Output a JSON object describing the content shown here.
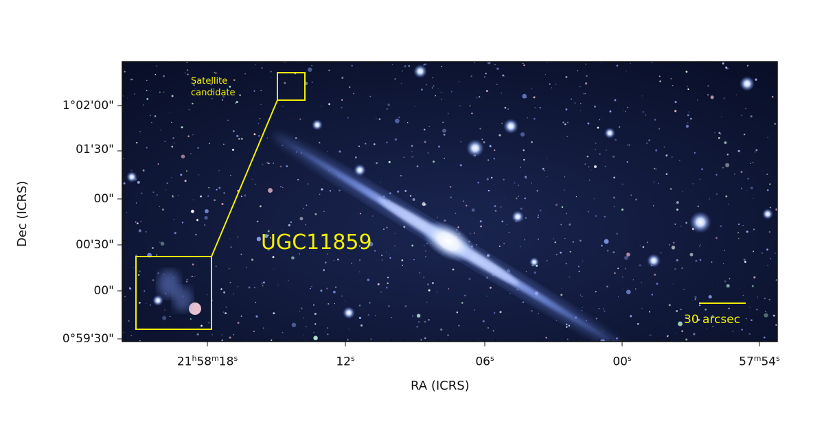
{
  "annotations": {
    "galaxy_name": "UGC11859",
    "satellite_line1": "Satellite",
    "satellite_line2": "candidate",
    "scale_bar": "30 arcsec"
  },
  "axes": {
    "x_title": "RA (ICRS)",
    "y_title": "Dec (ICRS)",
    "x_ticks": [
      {
        "main": "21",
        "u1": "h",
        "mid": "58",
        "u2": "m",
        "sec": "18",
        "u3": "s"
      },
      {
        "main": "",
        "u1": "",
        "mid": "",
        "u2": "",
        "sec": "12",
        "u3": "s"
      },
      {
        "main": "",
        "u1": "",
        "mid": "",
        "u2": "",
        "sec": "06",
        "u3": "s"
      },
      {
        "main": "",
        "u1": "",
        "mid": "",
        "u2": "",
        "sec": "00",
        "u3": "s"
      },
      {
        "main": "",
        "u1": "",
        "mid": "57",
        "u2": "m",
        "sec": "54",
        "u3": "s"
      }
    ],
    "y_ticks": [
      "1°02'00\"",
      "01'30\"",
      "00\"",
      "00'30\"",
      "00\"",
      "0°59'30\""
    ]
  },
  "colors": {
    "annotation": "#f4f000",
    "sky": "#0b1330",
    "galaxy": "#cfe0ff"
  }
}
